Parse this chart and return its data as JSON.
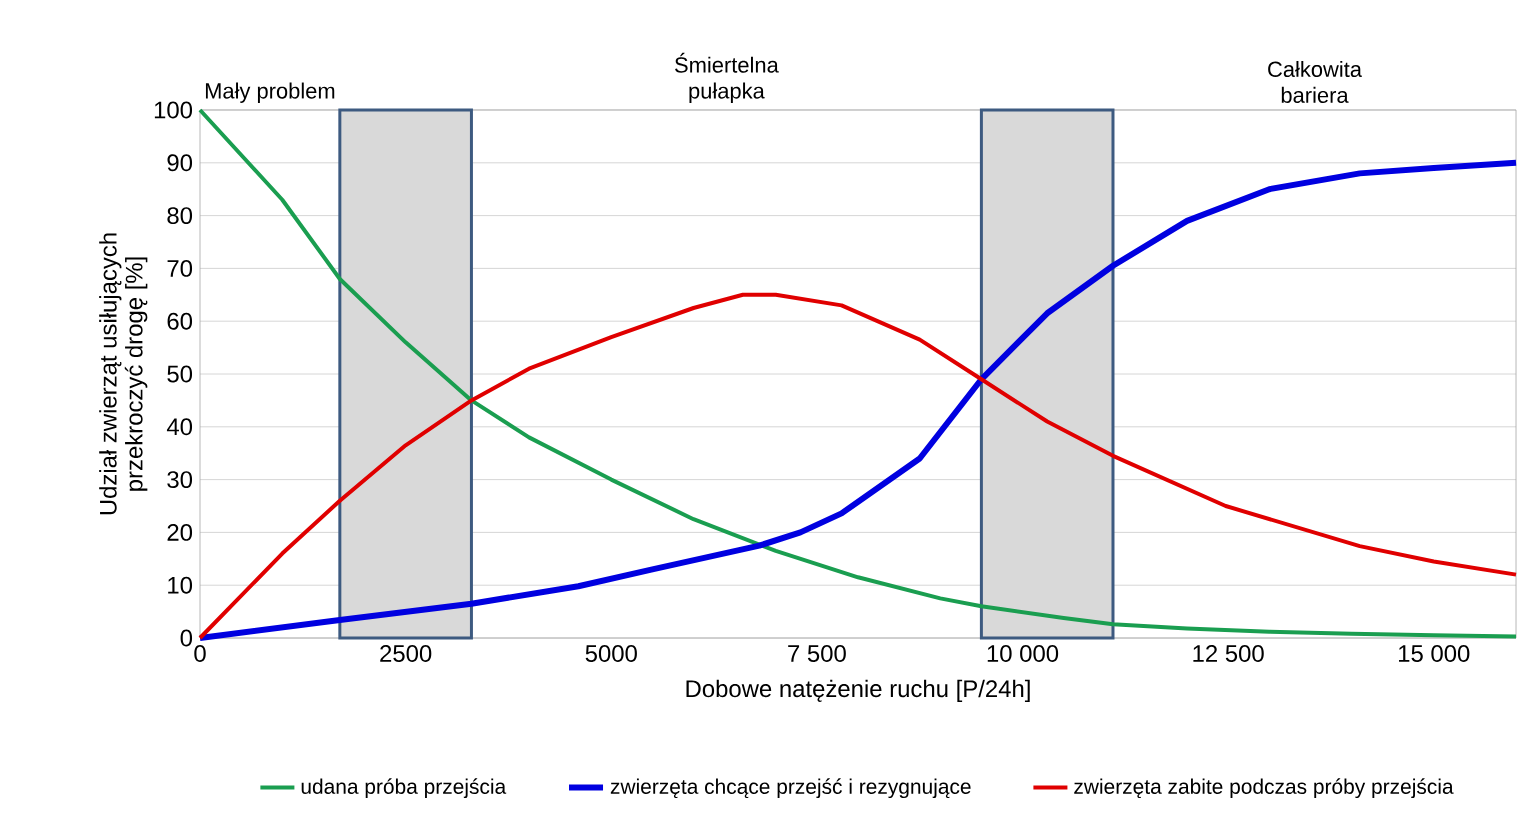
{
  "chart_data": {
    "type": "line",
    "xlabel": "Dobowe natężenie ruchu [P/24h]",
    "ylabel": "Udział zwierząt usiłujących przekroczyć drogę [%]",
    "xlim": [
      0,
      16000
    ],
    "xticks": [
      0,
      {
        "value": 2500,
        "label": "2500"
      },
      {
        "value": 5000,
        "label": "5000"
      },
      {
        "value": 7500,
        "label": "7 500"
      },
      {
        "value": 10000,
        "label": "10 000"
      },
      {
        "value": 12500,
        "label": "12 500"
      },
      {
        "value": 15000,
        "label": "15 000"
      }
    ],
    "ylim": [
      0,
      100
    ],
    "yticks": [
      0,
      10,
      20,
      30,
      40,
      50,
      60,
      70,
      80,
      90,
      100
    ],
    "grid": "y",
    "legend": "bottom",
    "annotations": [
      "Mały problem",
      "Śmiertelna pułapka",
      "Całkowita bariera"
    ],
    "bands": [
      {
        "axis": "x",
        "from": 1700,
        "to": 3300,
        "color": "#d9d9d9"
      },
      {
        "axis": "x",
        "from": 9500,
        "to": 11100,
        "color": "#d9d9d9"
      }
    ],
    "series": [
      {
        "name": "udana próba przejścia",
        "color": "#1a9e50",
        "x": [
          0,
          1000,
          1700,
          2500,
          3300,
          4000,
          5000,
          6000,
          7000,
          8000,
          9000,
          9500,
          10500,
          11100,
          12000,
          13000,
          14000,
          15000,
          16000
        ],
        "values": [
          100,
          83,
          68,
          56,
          45,
          38,
          30,
          22.5,
          16.5,
          11.5,
          7.5,
          6,
          3.8,
          2.6,
          1.8,
          1.2,
          0.8,
          0.5,
          0.3
        ]
      },
      {
        "name": "zwierzęta chcące przejść i rezygnujące",
        "color": "#0000e0",
        "x": [
          0,
          1700,
          3300,
          4600,
          5500,
          6800,
          7300,
          7800,
          8750,
          9500,
          10300,
          11100,
          12000,
          13000,
          14100,
          15000,
          16000
        ],
        "values": [
          0,
          3.4,
          6.5,
          9.8,
          13,
          17.5,
          20,
          23.6,
          34,
          49,
          61.5,
          70.5,
          79,
          85,
          88,
          89,
          90
        ]
      },
      {
        "name": "zwierzęta zabite podczas próby przejścia",
        "color": "#e00000",
        "x": [
          0,
          1000,
          1700,
          2500,
          3300,
          4000,
          5000,
          6000,
          6600,
          7000,
          7800,
          8750,
          9500,
          10300,
          11100,
          12470,
          14100,
          15000,
          16000
        ],
        "values": [
          0,
          16,
          26,
          36.5,
          45,
          51,
          57,
          62.5,
          65,
          65,
          63,
          56.5,
          49,
          41,
          34.5,
          25,
          17.4,
          14.5,
          12
        ]
      }
    ]
  }
}
